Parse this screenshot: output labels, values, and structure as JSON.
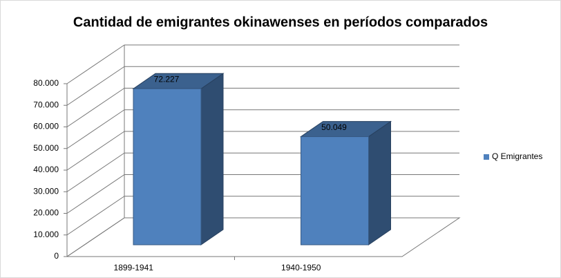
{
  "chart_data": {
    "type": "bar3d",
    "title": "Cantidad de emigrantes okinawenses en períodos comparados",
    "categories": [
      "1899-1941",
      "1940-1950"
    ],
    "series": [
      {
        "name": "Q Emigrantes",
        "color": "#4f81bd",
        "values": [
          72227,
          50049
        ],
        "value_labels": [
          "72.227",
          "50.049"
        ]
      }
    ],
    "ylim": [
      0,
      80000
    ],
    "yticks": [
      0,
      {
        "value": 10000,
        "label": "10.000"
      },
      {
        "value": 20000,
        "label": "20.000"
      },
      {
        "value": 30000,
        "label": "30.000"
      },
      {
        "value": 40000,
        "label": "40.000"
      },
      {
        "value": 50000,
        "label": "50.000"
      },
      {
        "value": 60000,
        "label": "60.000"
      },
      {
        "value": 70000,
        "label": "70.000"
      },
      {
        "value": 80000,
        "label": "80.000"
      }
    ],
    "grid": true,
    "legend": "right"
  }
}
